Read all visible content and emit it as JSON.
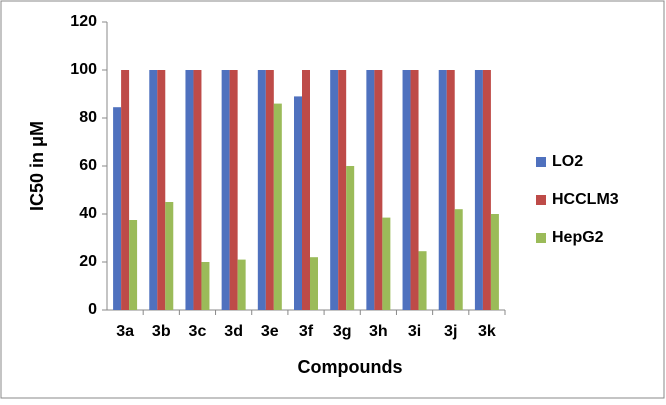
{
  "chart_data": {
    "type": "bar",
    "x_label": "Compounds",
    "y_label": "IC50 in μM",
    "categories": [
      "3a",
      "3b",
      "3c",
      "3d",
      "3e",
      "3f",
      "3g",
      "3h",
      "3i",
      "3j",
      "3k"
    ],
    "series": [
      {
        "name": "LO2",
        "color": "#4f71be",
        "values": [
          84.5,
          100,
          100,
          100,
          100,
          89,
          100,
          100,
          100,
          100,
          100
        ]
      },
      {
        "name": "HCCLM3",
        "color": "#be4b48",
        "values": [
          100,
          100,
          100,
          100,
          100,
          100,
          100,
          100,
          100,
          100,
          100
        ]
      },
      {
        "name": "HepG2",
        "color": "#9bbb59",
        "values": [
          37.5,
          45,
          20,
          21,
          86,
          22,
          60,
          38.5,
          24.5,
          42,
          40
        ]
      }
    ],
    "ylim": [
      0,
      120
    ],
    "yticks": [
      0,
      20,
      40,
      60,
      80,
      100,
      120
    ],
    "grid": false,
    "legend": "right"
  }
}
